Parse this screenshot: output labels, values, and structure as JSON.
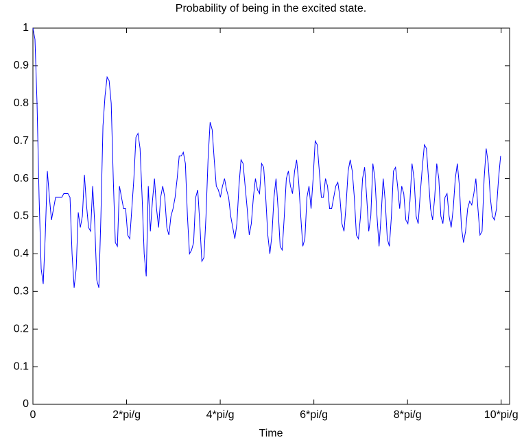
{
  "chart_data": {
    "type": "line",
    "title": "Probability of being in the excited state.",
    "xlabel": "Time",
    "color": "#0000ff",
    "xlim": [
      0,
      10.18
    ],
    "ylim": [
      0,
      1
    ],
    "xticks": [
      0,
      {
        "value": 2,
        "label": "2*pi/g"
      },
      {
        "value": 4,
        "label": "4*pi/g"
      },
      {
        "value": 6,
        "label": "6*pi/g"
      },
      {
        "value": 8,
        "label": "8*pi/g"
      },
      {
        "value": 10,
        "label": "10*pi/g"
      }
    ],
    "yticks": [
      0,
      0.1,
      0.2,
      0.3,
      0.4,
      0.5,
      0.6,
      0.7,
      0.8,
      0.9,
      1
    ],
    "x": [
      0,
      0.044,
      0.088,
      0.132,
      0.176,
      0.22,
      0.264,
      0.308,
      0.352,
      0.396,
      0.44,
      0.484,
      0.528,
      0.572,
      0.616,
      0.66,
      0.704,
      0.748,
      0.792,
      0.836,
      0.88,
      0.924,
      0.968,
      1.012,
      1.056,
      1.1,
      1.144,
      1.188,
      1.232,
      1.276,
      1.32,
      1.364,
      1.408,
      1.452,
      1.496,
      1.54,
      1.584,
      1.628,
      1.672,
      1.716,
      1.76,
      1.804,
      1.848,
      1.892,
      1.936,
      1.98,
      2.024,
      2.068,
      2.112,
      2.156,
      2.2,
      2.244,
      2.288,
      2.332,
      2.376,
      2.42,
      2.464,
      2.508,
      2.552,
      2.596,
      2.64,
      2.684,
      2.728,
      2.772,
      2.816,
      2.86,
      2.904,
      2.948,
      2.992,
      3.036,
      3.08,
      3.124,
      3.168,
      3.212,
      3.256,
      3.3,
      3.344,
      3.388,
      3.432,
      3.476,
      3.52,
      3.564,
      3.608,
      3.652,
      3.696,
      3.74,
      3.784,
      3.828,
      3.872,
      3.916,
      3.96,
      4.004,
      4.048,
      4.092,
      4.136,
      4.18,
      4.224,
      4.268,
      4.312,
      4.356,
      4.4,
      4.444,
      4.488,
      4.532,
      4.576,
      4.62,
      4.664,
      4.708,
      4.752,
      4.796,
      4.84,
      4.884,
      4.928,
      4.972,
      5.016,
      5.06,
      5.104,
      5.148,
      5.192,
      5.236,
      5.28,
      5.324,
      5.368,
      5.412,
      5.456,
      5.5,
      5.544,
      5.588,
      5.632,
      5.676,
      5.72,
      5.764,
      5.808,
      5.852,
      5.896,
      5.94,
      5.984,
      6.028,
      6.072,
      6.116,
      6.16,
      6.204,
      6.248,
      6.292,
      6.336,
      6.38,
      6.424,
      6.468,
      6.512,
      6.556,
      6.6,
      6.644,
      6.688,
      6.732,
      6.776,
      6.82,
      6.864,
      6.908,
      6.952,
      6.996,
      7.04,
      7.084,
      7.128,
      7.172,
      7.216,
      7.26,
      7.304,
      7.348,
      7.392,
      7.436,
      7.48,
      7.524,
      7.568,
      7.612,
      7.656,
      7.7,
      7.744,
      7.788,
      7.832,
      7.876,
      7.92,
      7.964,
      8.008,
      8.052,
      8.096,
      8.14,
      8.184,
      8.228,
      8.272,
      8.316,
      8.36,
      8.404,
      8.448,
      8.492,
      8.536,
      8.58,
      8.624,
      8.668,
      8.712,
      8.756,
      8.8,
      8.844,
      8.888,
      8.932,
      8.976,
      9.02,
      9.064,
      9.108,
      9.152,
      9.196,
      9.24,
      9.284,
      9.328,
      9.372,
      9.416,
      9.46,
      9.504,
      9.548,
      9.592,
      9.636,
      9.68,
      9.724,
      9.768,
      9.812,
      9.856,
      9.9,
      9.944,
      9.988
    ],
    "values": [
      1.0,
      0.97,
      0.8,
      0.55,
      0.36,
      0.32,
      0.45,
      0.62,
      0.55,
      0.49,
      0.52,
      0.55,
      0.55,
      0.55,
      0.55,
      0.56,
      0.56,
      0.56,
      0.55,
      0.4,
      0.31,
      0.36,
      0.51,
      0.47,
      0.5,
      0.61,
      0.53,
      0.47,
      0.46,
      0.58,
      0.48,
      0.33,
      0.31,
      0.5,
      0.74,
      0.82,
      0.87,
      0.86,
      0.8,
      0.6,
      0.43,
      0.42,
      0.58,
      0.55,
      0.52,
      0.52,
      0.45,
      0.44,
      0.52,
      0.6,
      0.71,
      0.72,
      0.68,
      0.55,
      0.4,
      0.34,
      0.58,
      0.46,
      0.54,
      0.6,
      0.52,
      0.47,
      0.55,
      0.58,
      0.55,
      0.47,
      0.45,
      0.5,
      0.52,
      0.55,
      0.6,
      0.66,
      0.66,
      0.67,
      0.64,
      0.5,
      0.4,
      0.41,
      0.43,
      0.55,
      0.57,
      0.48,
      0.38,
      0.39,
      0.5,
      0.65,
      0.75,
      0.73,
      0.65,
      0.58,
      0.57,
      0.55,
      0.58,
      0.6,
      0.57,
      0.55,
      0.5,
      0.47,
      0.44,
      0.48,
      0.58,
      0.65,
      0.64,
      0.58,
      0.52,
      0.45,
      0.48,
      0.55,
      0.6,
      0.57,
      0.56,
      0.64,
      0.63,
      0.55,
      0.45,
      0.4,
      0.45,
      0.55,
      0.6,
      0.52,
      0.42,
      0.41,
      0.5,
      0.6,
      0.62,
      0.58,
      0.56,
      0.62,
      0.65,
      0.59,
      0.5,
      0.42,
      0.44,
      0.55,
      0.58,
      0.52,
      0.6,
      0.7,
      0.69,
      0.62,
      0.55,
      0.55,
      0.6,
      0.58,
      0.52,
      0.52,
      0.55,
      0.58,
      0.59,
      0.55,
      0.48,
      0.46,
      0.53,
      0.62,
      0.65,
      0.62,
      0.55,
      0.45,
      0.44,
      0.5,
      0.6,
      0.63,
      0.55,
      0.46,
      0.5,
      0.64,
      0.6,
      0.5,
      0.42,
      0.5,
      0.6,
      0.54,
      0.44,
      0.42,
      0.5,
      0.62,
      0.63,
      0.58,
      0.52,
      0.58,
      0.56,
      0.49,
      0.48,
      0.54,
      0.64,
      0.6,
      0.5,
      0.48,
      0.56,
      0.63,
      0.69,
      0.68,
      0.6,
      0.52,
      0.49,
      0.55,
      0.64,
      0.6,
      0.5,
      0.48,
      0.55,
      0.56,
      0.5,
      0.47,
      0.52,
      0.6,
      0.64,
      0.58,
      0.47,
      0.43,
      0.46,
      0.52,
      0.54,
      0.53,
      0.56,
      0.6,
      0.52,
      0.45,
      0.46,
      0.6,
      0.68,
      0.64,
      0.55,
      0.5,
      0.49,
      0.52,
      0.6,
      0.66
    ]
  }
}
